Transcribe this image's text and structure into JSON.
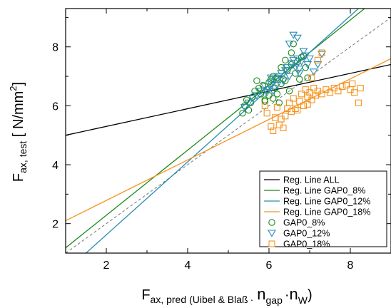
{
  "chart_data": {
    "type": "scatter",
    "title": "",
    "xlim": [
      1,
      9
    ],
    "ylim": [
      1,
      9.3
    ],
    "x_ticks": [
      2,
      4,
      6,
      8
    ],
    "y_ticks": [
      2,
      4,
      6,
      8
    ],
    "x_tick_labels": [
      "2",
      "4",
      "6",
      "8"
    ],
    "y_tick_labels": [
      "2",
      "4",
      "6",
      "8"
    ],
    "xlabel": {
      "main": "F",
      "sub": "ax, pred",
      "paren_open": "(Uibel & Blaß",
      "dot1": "·",
      "n_main": "n",
      "n_sub": "gap",
      "dot2": "·",
      "n2_main": "n",
      "n2_sub": "W",
      "paren_close": ")"
    },
    "ylabel": {
      "main": "F",
      "sub": "ax, test",
      "unit_open": " [ N/mm",
      "unit_sup": "2",
      "unit_close": "]"
    },
    "legend_position": "bottom-right",
    "colors": {
      "all": "#000000",
      "gap8": "#1a8a1a",
      "gap12": "#2a8cb4",
      "gap18": "#f5921e"
    },
    "lines": [
      {
        "name": "Reg. Line ALL",
        "color_key": "all",
        "x": [
          1,
          9
        ],
        "y": [
          5.0,
          7.4
        ]
      },
      {
        "name": "Reg. Line GAP0_8%",
        "color_key": "gap8",
        "x": [
          1,
          8.35
        ],
        "y": [
          1.18,
          9.3
        ]
      },
      {
        "name": "Reg. Line GAP0_12%",
        "color_key": "gap12",
        "x": [
          1.5,
          8.2
        ],
        "y": [
          1.0,
          9.3
        ]
      },
      {
        "name": "Reg. Line GAP0_18%",
        "color_key": "gap18",
        "x": [
          1,
          9
        ],
        "y": [
          2.1,
          7.6
        ]
      }
    ],
    "reference_line": {
      "style": "dashed",
      "color": "#777777",
      "x": [
        1,
        9
      ],
      "y": [
        1,
        9
      ]
    },
    "series": [
      {
        "name": "GAP0_8%",
        "marker": "circle",
        "color_key": "gap8",
        "points": [
          [
            5.35,
            5.75
          ],
          [
            5.4,
            6.0
          ],
          [
            5.45,
            6.2
          ],
          [
            5.5,
            5.85
          ],
          [
            5.55,
            6.1
          ],
          [
            5.6,
            6.3
          ],
          [
            5.65,
            6.5
          ],
          [
            5.7,
            6.85
          ],
          [
            5.75,
            6.6
          ],
          [
            5.8,
            6.4
          ],
          [
            5.85,
            6.7
          ],
          [
            5.9,
            6.2
          ],
          [
            5.95,
            6.55
          ],
          [
            6.0,
            6.35
          ],
          [
            6.0,
            6.8
          ],
          [
            6.05,
            6.9
          ],
          [
            6.1,
            7.0
          ],
          [
            6.15,
            6.6
          ],
          [
            6.2,
            6.4
          ],
          [
            6.25,
            6.1
          ],
          [
            6.3,
            7.3
          ],
          [
            6.3,
            6.75
          ],
          [
            6.35,
            6.9
          ],
          [
            6.4,
            7.55
          ],
          [
            6.45,
            7.2
          ],
          [
            6.5,
            6.5
          ],
          [
            6.55,
            7.4
          ],
          [
            6.55,
            7.8
          ],
          [
            6.6,
            8.1
          ],
          [
            6.65,
            7.1
          ],
          [
            6.7,
            7.5
          ],
          [
            6.75,
            6.9
          ],
          [
            6.8,
            7.65
          ],
          [
            6.85,
            7.7
          ],
          [
            6.9,
            7.3
          ],
          [
            6.95,
            6.95
          ],
          [
            5.9,
            6.15
          ],
          [
            6.1,
            6.25
          ],
          [
            6.2,
            6.95
          ],
          [
            6.4,
            6.85
          ]
        ]
      },
      {
        "name": "GAP0_12%",
        "marker": "triangle-down",
        "color_key": "gap12",
        "points": [
          [
            5.4,
            5.95
          ],
          [
            5.5,
            6.1
          ],
          [
            5.6,
            6.25
          ],
          [
            5.7,
            6.35
          ],
          [
            5.8,
            6.5
          ],
          [
            5.9,
            6.65
          ],
          [
            5.95,
            6.45
          ],
          [
            6.0,
            6.55
          ],
          [
            6.05,
            6.75
          ],
          [
            6.1,
            6.5
          ],
          [
            6.15,
            6.9
          ],
          [
            6.2,
            6.7
          ],
          [
            6.25,
            7.0
          ],
          [
            6.3,
            7.1
          ],
          [
            6.35,
            6.85
          ],
          [
            6.4,
            7.2
          ],
          [
            6.45,
            7.3
          ],
          [
            6.5,
            7.0
          ],
          [
            6.55,
            7.45
          ],
          [
            6.6,
            7.55
          ],
          [
            6.65,
            7.3
          ],
          [
            6.7,
            7.6
          ],
          [
            6.75,
            7.25
          ],
          [
            6.8,
            7.5
          ],
          [
            6.85,
            7.85
          ],
          [
            6.9,
            7.7
          ],
          [
            6.95,
            7.4
          ],
          [
            7.0,
            7.6
          ],
          [
            7.1,
            7.15
          ],
          [
            7.2,
            7.4
          ],
          [
            7.3,
            7.75
          ],
          [
            6.6,
            8.4
          ],
          [
            6.7,
            8.3
          ],
          [
            6.5,
            8.1
          ],
          [
            6.75,
            7.1
          ],
          [
            6.05,
            6.95
          ]
        ]
      },
      {
        "name": "GAP0_18%",
        "marker": "square",
        "color_key": "gap18",
        "points": [
          [
            5.9,
            6.0
          ],
          [
            5.95,
            5.75
          ],
          [
            6.05,
            5.3
          ],
          [
            6.1,
            5.15
          ],
          [
            6.15,
            5.6
          ],
          [
            6.2,
            5.95
          ],
          [
            6.3,
            5.55
          ],
          [
            6.35,
            5.25
          ],
          [
            6.4,
            5.65
          ],
          [
            6.45,
            5.9
          ],
          [
            6.5,
            6.1
          ],
          [
            6.55,
            5.8
          ],
          [
            6.6,
            6.25
          ],
          [
            6.7,
            5.85
          ],
          [
            6.75,
            6.15
          ],
          [
            6.8,
            6.4
          ],
          [
            6.85,
            6.0
          ],
          [
            6.9,
            6.55
          ],
          [
            6.95,
            6.3
          ],
          [
            7.0,
            6.45
          ],
          [
            7.05,
            6.2
          ],
          [
            7.1,
            6.6
          ],
          [
            7.15,
            6.35
          ],
          [
            7.2,
            6.5
          ],
          [
            7.3,
            6.4
          ],
          [
            7.4,
            6.55
          ],
          [
            7.5,
            6.45
          ],
          [
            7.6,
            6.6
          ],
          [
            7.7,
            6.5
          ],
          [
            7.8,
            6.65
          ],
          [
            7.9,
            6.7
          ],
          [
            8.0,
            6.55
          ],
          [
            8.05,
            6.75
          ],
          [
            8.1,
            6.45
          ],
          [
            8.2,
            6.1
          ],
          [
            8.25,
            6.6
          ],
          [
            7.2,
            7.55
          ],
          [
            7.3,
            7.8
          ],
          [
            7.05,
            6.95
          ],
          [
            6.95,
            6.05
          ],
          [
            6.65,
            5.9
          ],
          [
            6.25,
            5.35
          ]
        ]
      }
    ]
  }
}
